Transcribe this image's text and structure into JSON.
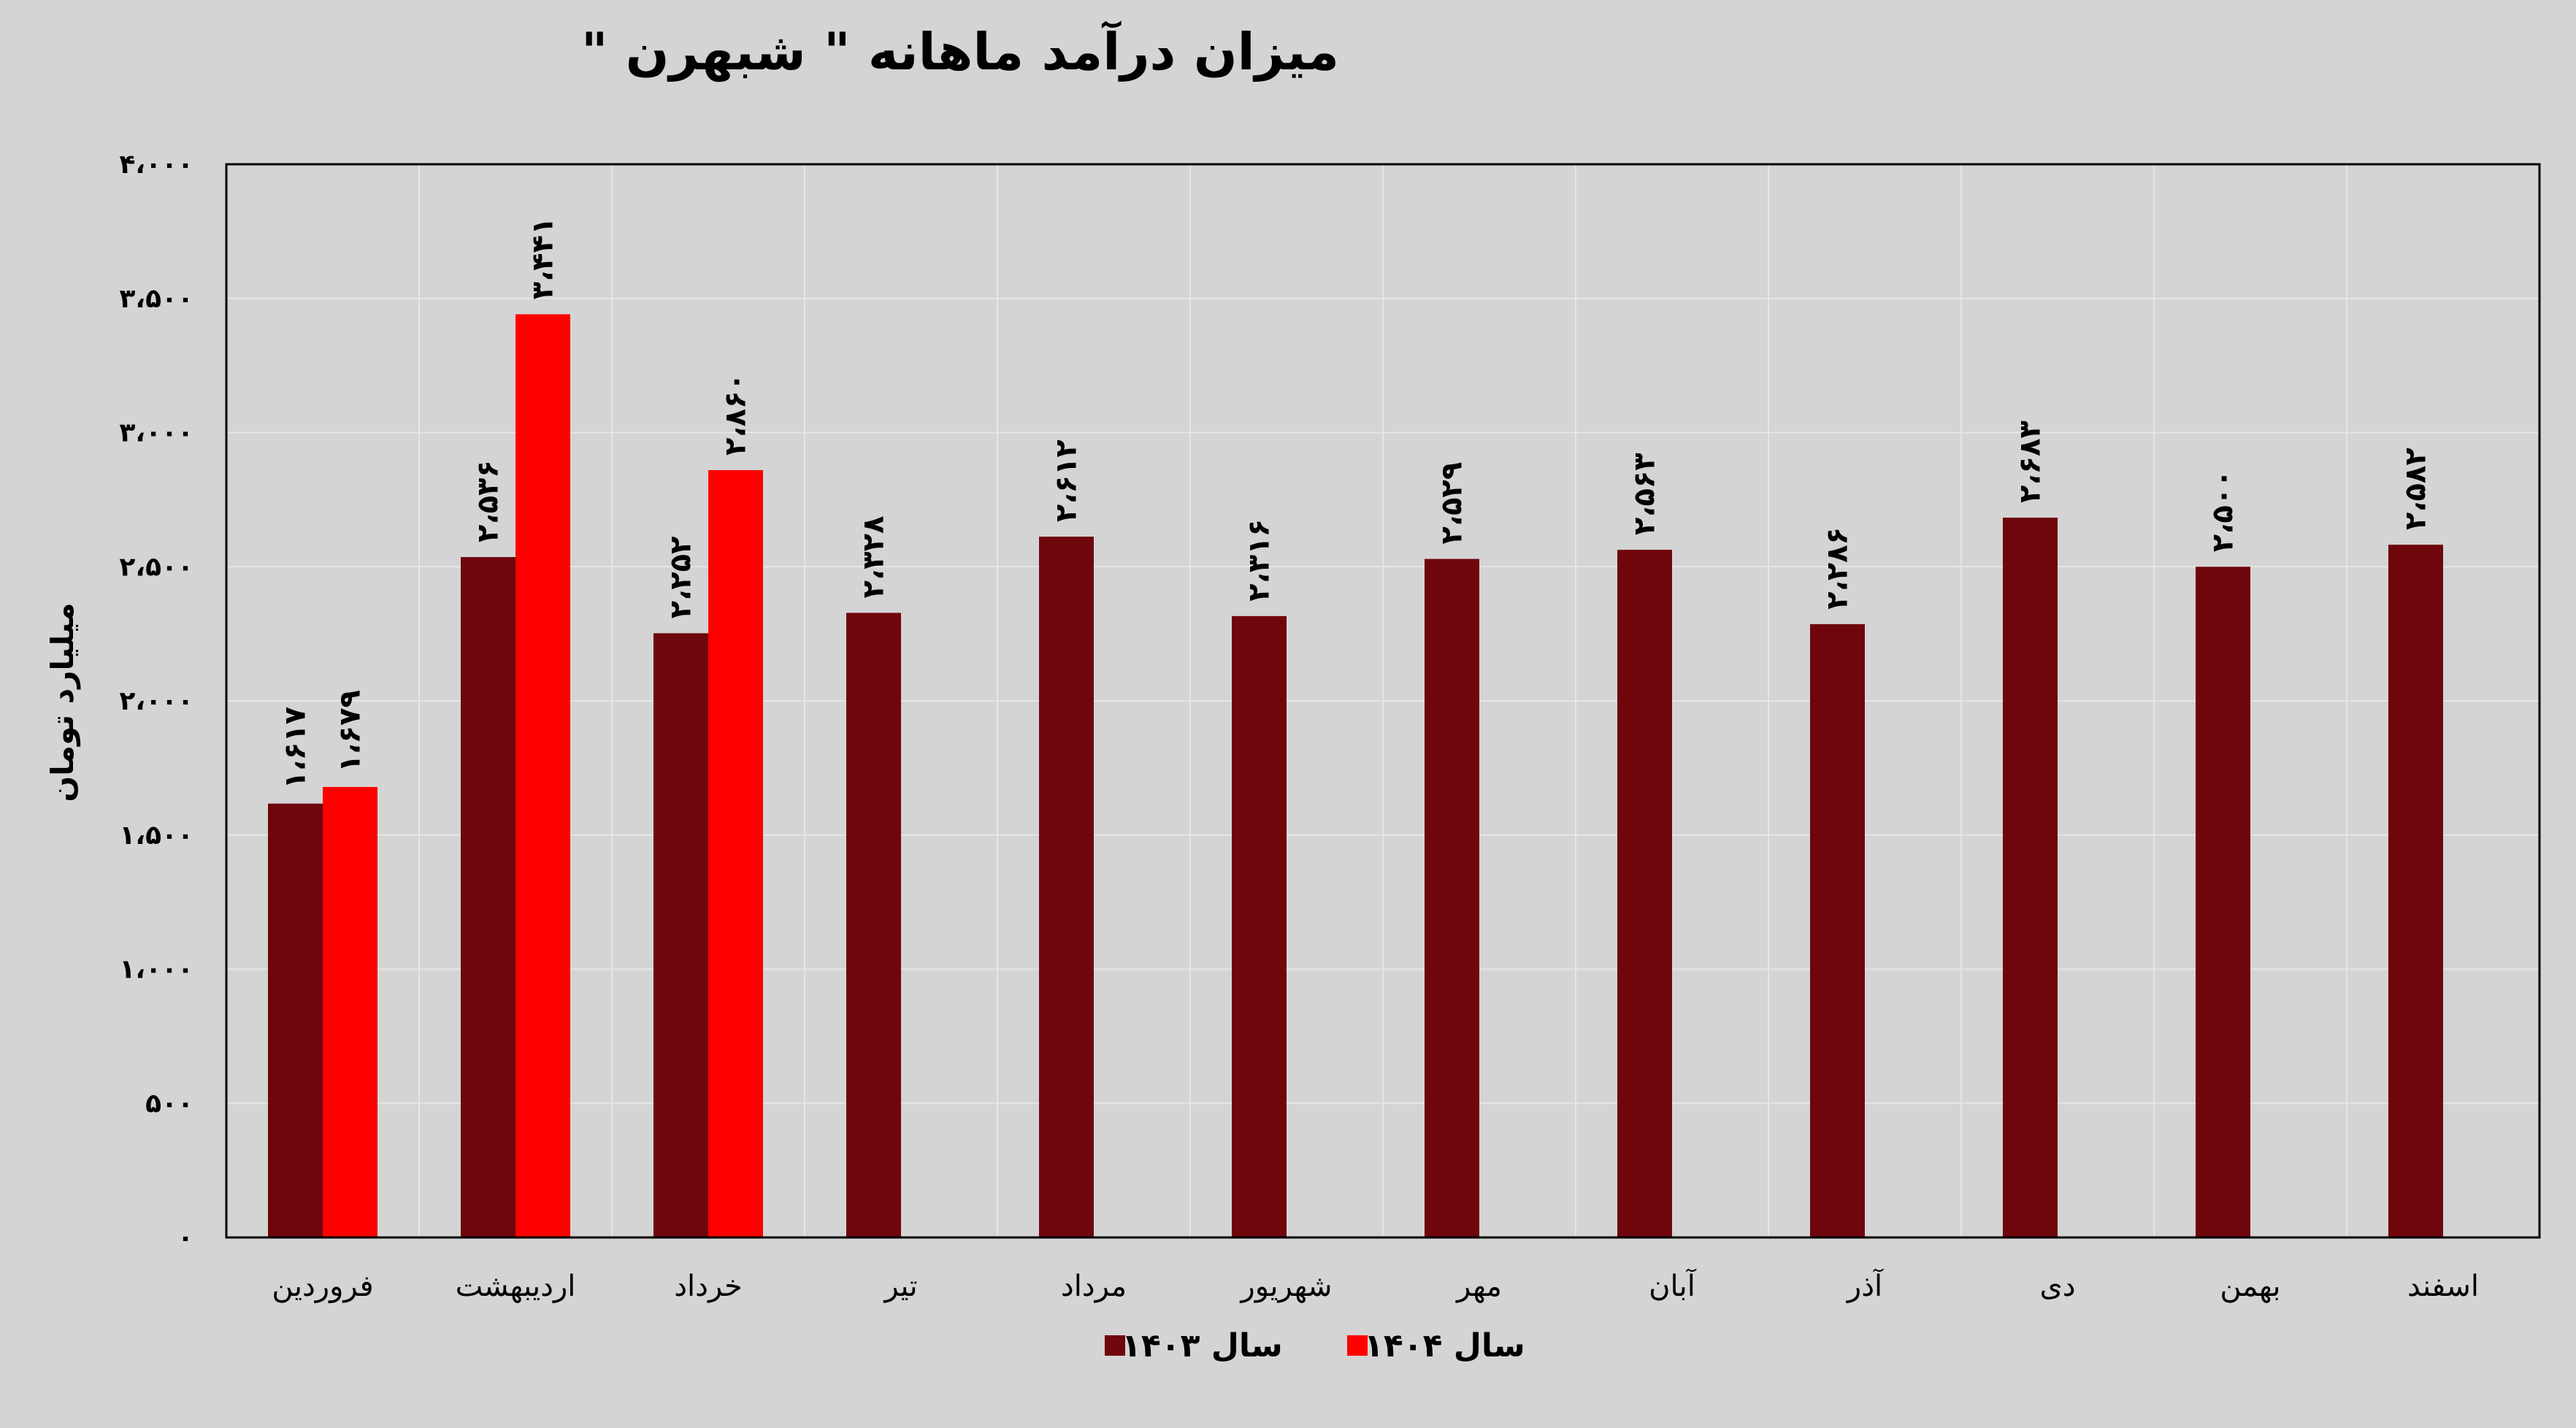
{
  "chart_data": {
    "type": "bar",
    "title": "میزان درآمد ماهانه \" شبهرن \"",
    "xlabel": "",
    "ylabel": "میلیارد تومان",
    "ylim": [
      0,
      4000
    ],
    "yticks": [
      0,
      500,
      1000,
      1500,
      2000,
      2500,
      3000,
      3500,
      4000
    ],
    "ytick_labels": [
      "۰",
      "۵۰۰",
      "۱،۰۰۰",
      "۱،۵۰۰",
      "۲،۰۰۰",
      "۲،۵۰۰",
      "۳،۰۰۰",
      "۳،۵۰۰",
      "۴،۰۰۰"
    ],
    "grid": true,
    "legend_position": "bottom",
    "categories": [
      "فروردین",
      "اردیبهشت",
      "خرداد",
      "تیر",
      "مرداد",
      "شهریور",
      "مهر",
      "آبان",
      "آذر",
      "دی",
      "بهمن",
      "اسفند"
    ],
    "series": [
      {
        "name": "سال ۱۴۰۳",
        "color": "#6e060c",
        "values": [
          1617,
          2536,
          2252,
          2328,
          2612,
          2316,
          2529,
          2563,
          2286,
          2683,
          2500,
          2582
        ],
        "labels": [
          "۱،۶۱۷",
          "۲،۵۳۶",
          "۲،۲۵۲",
          "۲،۳۲۸",
          "۲،۶۱۲",
          "۲،۳۱۶",
          "۲،۵۲۹",
          "۲،۵۶۳",
          "۲،۲۸۶",
          "۲،۶۸۳",
          "۲،۵۰۰",
          "۲،۵۸۲"
        ]
      },
      {
        "name": "سال ۱۴۰۴",
        "color": "#ff0000",
        "values": [
          1679,
          3441,
          2860,
          null,
          null,
          null,
          null,
          null,
          null,
          null,
          null,
          null
        ],
        "labels": [
          "۱،۶۷۹",
          "۳،۴۴۱",
          "۲،۸۶۰",
          null,
          null,
          null,
          null,
          null,
          null,
          null,
          null,
          null
        ]
      }
    ]
  }
}
